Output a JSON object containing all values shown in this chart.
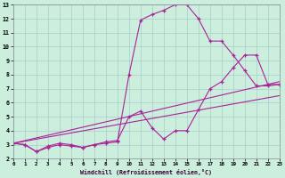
{
  "xlabel": "Windchill (Refroidissement éolien,°C)",
  "background_color": "#cceedd",
  "grid_color": "#aacccc",
  "line_color": "#aa2299",
  "xlim": [
    0,
    23
  ],
  "ylim": [
    2,
    13
  ],
  "xticks": [
    0,
    1,
    2,
    3,
    4,
    5,
    6,
    7,
    8,
    9,
    10,
    11,
    12,
    13,
    14,
    15,
    16,
    17,
    18,
    19,
    20,
    21,
    22,
    23
  ],
  "yticks": [
    2,
    3,
    4,
    5,
    6,
    7,
    8,
    9,
    10,
    11,
    12,
    13
  ],
  "lines": [
    {
      "x": [
        0,
        1,
        2,
        3,
        4,
        5,
        6,
        7,
        8,
        9,
        10,
        11,
        12,
        13,
        14,
        15,
        16,
        17,
        18,
        19,
        20,
        21,
        22,
        23
      ],
      "y": [
        3.1,
        3.0,
        2.5,
        2.8,
        3.0,
        2.9,
        2.8,
        3.0,
        3.1,
        3.2,
        8.0,
        11.9,
        12.3,
        12.6,
        13.0,
        13.0,
        12.0,
        10.4,
        10.4,
        9.4,
        8.3,
        7.2,
        7.2,
        7.3
      ],
      "has_marker": true
    },
    {
      "x": [
        0,
        1,
        2,
        3,
        4,
        5,
        6,
        7,
        8,
        9,
        10,
        11,
        12,
        13,
        14,
        15,
        16,
        17,
        18,
        19,
        20,
        21,
        22,
        23
      ],
      "y": [
        3.1,
        3.0,
        2.5,
        2.9,
        3.1,
        3.0,
        2.8,
        3.0,
        3.2,
        3.3,
        5.0,
        5.4,
        4.2,
        3.4,
        4.0,
        4.0,
        5.5,
        7.0,
        7.5,
        8.5,
        9.4,
        9.4,
        7.3,
        7.3
      ],
      "has_marker": true
    },
    {
      "x": [
        0,
        23
      ],
      "y": [
        3.1,
        7.5
      ],
      "has_marker": false
    },
    {
      "x": [
        0,
        23
      ],
      "y": [
        3.1,
        6.5
      ],
      "has_marker": false
    }
  ]
}
